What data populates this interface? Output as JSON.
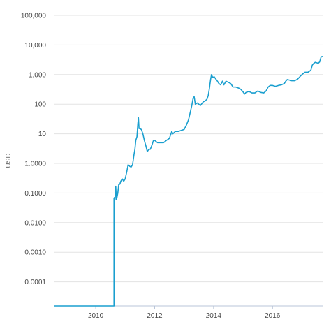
{
  "chart_data": {
    "type": "line",
    "title": "",
    "xlabel": "",
    "ylabel": "USD",
    "y_scale": "log",
    "ylim": [
      1e-05,
      100000
    ],
    "xlim": [
      2008.6,
      2017.7
    ],
    "grid": true,
    "legend": "none",
    "x_ticks": [
      2010,
      2012,
      2014,
      2016
    ],
    "x_tick_labels": [
      "2010",
      "2012",
      "2014",
      "2016"
    ],
    "y_ticks": [
      0.0001,
      0.001,
      0.01,
      0.1,
      1,
      10,
      100,
      1000,
      10000,
      100000
    ],
    "y_tick_labels": [
      "0.0001",
      "0.0010",
      "0.0100",
      "0.1000",
      "1.0000",
      "10",
      "100",
      "1,000",
      "10,000",
      "100,000"
    ],
    "series": [
      {
        "color": "#1a9fcf",
        "x": [
          2008.6,
          2010.62,
          2010.62,
          2010.63,
          2010.65,
          2010.68,
          2010.7,
          2010.72,
          2010.75,
          2010.78,
          2010.82,
          2010.85,
          2010.9,
          2010.95,
          2011.0,
          2011.05,
          2011.1,
          2011.15,
          2011.2,
          2011.25,
          2011.3,
          2011.33,
          2011.36,
          2011.4,
          2011.43,
          2011.45,
          2011.47,
          2011.5,
          2011.55,
          2011.6,
          2011.65,
          2011.7,
          2011.75,
          2011.8,
          2011.85,
          2011.88,
          2011.92,
          2011.96,
          2012.0,
          2012.1,
          2012.2,
          2012.3,
          2012.4,
          2012.5,
          2012.58,
          2012.62,
          2012.7,
          2012.8,
          2012.9,
          2013.0,
          2013.08,
          2013.15,
          2013.22,
          2013.26,
          2013.3,
          2013.34,
          2013.38,
          2013.45,
          2013.55,
          2013.65,
          2013.72,
          2013.78,
          2013.82,
          2013.86,
          2013.9,
          2013.93,
          2013.97,
          2014.02,
          2014.08,
          2014.13,
          2014.18,
          2014.24,
          2014.3,
          2014.35,
          2014.42,
          2014.5,
          2014.58,
          2014.66,
          2014.75,
          2014.85,
          2014.92,
          2015.0,
          2015.05,
          2015.1,
          2015.2,
          2015.3,
          2015.4,
          2015.5,
          2015.6,
          2015.7,
          2015.78,
          2015.85,
          2015.92,
          2016.0,
          2016.1,
          2016.2,
          2016.3,
          2016.4,
          2016.45,
          2016.5,
          2016.58,
          2016.65,
          2016.75,
          2016.85,
          2016.95,
          2017.0,
          2017.05,
          2017.1,
          2017.2,
          2017.3,
          2017.35,
          2017.4,
          2017.45,
          2017.5,
          2017.55,
          2017.6,
          2017.65,
          2017.7
        ],
        "y": [
          1e-05,
          1e-05,
          0.065,
          0.07,
          0.06,
          0.17,
          0.06,
          0.07,
          0.1,
          0.19,
          0.2,
          0.25,
          0.3,
          0.25,
          0.3,
          0.5,
          0.9,
          0.8,
          0.75,
          0.9,
          2,
          3,
          6,
          8,
          22,
          35,
          15,
          15,
          14,
          10,
          6,
          4,
          2.5,
          3,
          3,
          3.5,
          4.5,
          6,
          6,
          5,
          5,
          5,
          6,
          7,
          12,
          10,
          12,
          12,
          13,
          14,
          20,
          30,
          60,
          90,
          150,
          180,
          100,
          110,
          90,
          120,
          130,
          150,
          200,
          350,
          700,
          1000,
          800,
          850,
          700,
          600,
          500,
          450,
          600,
          450,
          600,
          550,
          500,
          380,
          380,
          350,
          320,
          260,
          220,
          250,
          270,
          240,
          240,
          280,
          250,
          240,
          280,
          380,
          430,
          430,
          400,
          430,
          450,
          500,
          600,
          680,
          650,
          620,
          620,
          700,
          900,
          1000,
          1100,
          1200,
          1200,
          1400,
          2100,
          2400,
          2600,
          2500,
          2400,
          2700,
          4000,
          4100
        ]
      }
    ]
  }
}
